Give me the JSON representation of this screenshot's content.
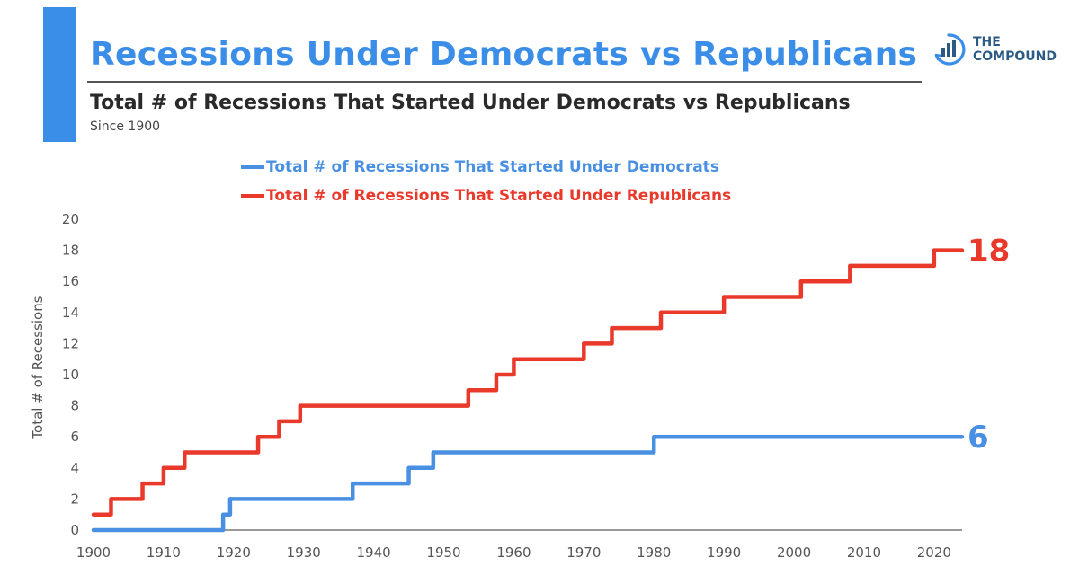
{
  "header": {
    "title": "Recessions Under Democrats vs Republicans",
    "subtitle": "Total # of Recessions That Started Under Democrats vs Republicans",
    "since": "Since 1900"
  },
  "logo": {
    "line1": "THE",
    "line2": "COMPOUND",
    "icon": "bar-chart-circle-icon"
  },
  "colors": {
    "accent": "#3b8ee8",
    "democrats": "#4a90e2",
    "republicans": "#e8392b"
  },
  "chart_data": {
    "type": "line",
    "title": "Total # of Recessions That Started Under Democrats vs Republicans",
    "subtitle": "Since 1900",
    "ylabel": "Total # of Recessions",
    "xlabel": "",
    "xlim": [
      1900,
      2024
    ],
    "ylim": [
      0,
      20
    ],
    "grid": false,
    "legend": "top-left",
    "x_ticks": [
      "1900",
      "1910",
      "1920",
      "1930",
      "1940",
      "1950",
      "1960",
      "1970",
      "1980",
      "1990",
      "2000",
      "2010",
      "2020"
    ],
    "y_ticks": [
      "0",
      "2",
      "4",
      "6",
      "8",
      "10",
      "12",
      "14",
      "16",
      "18",
      "20"
    ],
    "series": [
      {
        "name": "Total # of Recessions That Started Under Democrats",
        "color": "#4a90e2",
        "end_label": "6",
        "steps": [
          [
            1900,
            0
          ],
          [
            1918.5,
            1
          ],
          [
            1919.5,
            2
          ],
          [
            1937,
            3
          ],
          [
            1945,
            4
          ],
          [
            1948.5,
            5
          ],
          [
            1980,
            6
          ]
        ],
        "x_end": 2024
      },
      {
        "name": "Total # of Recessions That Started Under Republicans",
        "color": "#e8392b",
        "end_label": "18",
        "steps": [
          [
            1900,
            1
          ],
          [
            1902.5,
            2
          ],
          [
            1907,
            3
          ],
          [
            1910,
            4
          ],
          [
            1913,
            5
          ],
          [
            1923.5,
            6
          ],
          [
            1926.5,
            7
          ],
          [
            1929.5,
            8
          ],
          [
            1953.5,
            9
          ],
          [
            1957.5,
            10
          ],
          [
            1960,
            11
          ],
          [
            1970,
            12
          ],
          [
            1974,
            13
          ],
          [
            1981,
            14
          ],
          [
            1990,
            15
          ],
          [
            2001,
            16
          ],
          [
            2008,
            17
          ],
          [
            2020,
            18
          ]
        ],
        "x_end": 2024
      }
    ]
  }
}
